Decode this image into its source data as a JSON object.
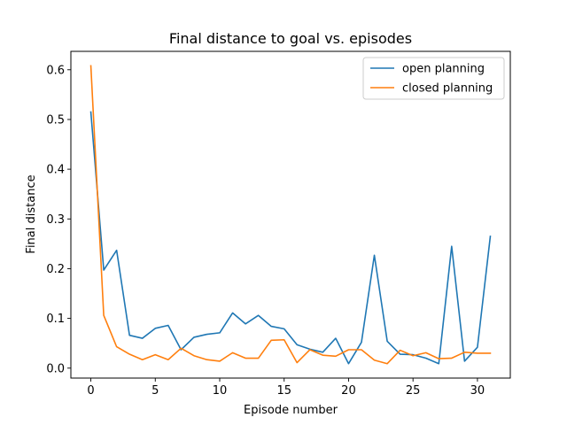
{
  "chart_data": {
    "type": "line",
    "title": "Final distance to goal vs. episodes",
    "xlabel": "Episode number",
    "ylabel": "Final distance",
    "xlim": [
      -1.55,
      32.55
    ],
    "ylim": [
      -0.02,
      0.637
    ],
    "xticks": [
      0,
      5,
      10,
      15,
      20,
      25,
      30
    ],
    "yticks": [
      0.0,
      0.1,
      0.2,
      0.3,
      0.4,
      0.5,
      0.6
    ],
    "ytick_labels": [
      "0.0",
      "0.1",
      "0.2",
      "0.3",
      "0.4",
      "0.5",
      "0.6"
    ],
    "grid": false,
    "legend_position": "top-right",
    "x": [
      0,
      1,
      2,
      3,
      4,
      5,
      6,
      7,
      8,
      9,
      10,
      11,
      12,
      13,
      14,
      15,
      16,
      17,
      18,
      19,
      20,
      21,
      22,
      23,
      24,
      25,
      26,
      27,
      28,
      29,
      30,
      31
    ],
    "series": [
      {
        "name": "open planning",
        "color": "#1f77b4",
        "values": [
          0.515,
          0.197,
          0.237,
          0.066,
          0.06,
          0.08,
          0.086,
          0.037,
          0.062,
          0.068,
          0.071,
          0.111,
          0.089,
          0.106,
          0.084,
          0.079,
          0.047,
          0.038,
          0.032,
          0.06,
          0.009,
          0.052,
          0.227,
          0.054,
          0.028,
          0.027,
          0.02,
          0.009,
          0.245,
          0.014,
          0.042,
          0.265
        ]
      },
      {
        "name": "closed planning",
        "color": "#ff7f0e",
        "values": [
          0.608,
          0.106,
          0.043,
          0.028,
          0.017,
          0.027,
          0.017,
          0.04,
          0.025,
          0.017,
          0.014,
          0.031,
          0.02,
          0.02,
          0.056,
          0.057,
          0.011,
          0.037,
          0.026,
          0.024,
          0.037,
          0.037,
          0.016,
          0.009,
          0.036,
          0.025,
          0.031,
          0.019,
          0.02,
          0.032,
          0.03,
          0.03
        ]
      }
    ]
  }
}
